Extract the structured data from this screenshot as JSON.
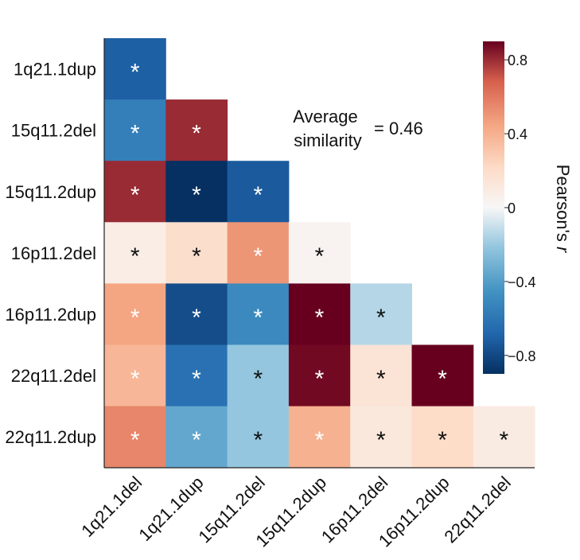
{
  "chart_data": {
    "type": "heatmap",
    "triangle": "lower",
    "row_labels": [
      "1q21.1dup",
      "15q11.2del",
      "15q11.2dup",
      "16p11.2del",
      "16p11.2dup",
      "22q11.2del",
      "22q11.2dup"
    ],
    "column_labels": [
      "1q21.1del",
      "1q21.1dup",
      "15q11.2del",
      "15q11.2dup",
      "16p11.2del",
      "16p11.2dup",
      "22q11.2del"
    ],
    "values": [
      [
        -0.7
      ],
      [
        -0.55,
        0.8
      ],
      [
        0.8,
        -0.95,
        -0.72
      ],
      [
        0.08,
        0.2,
        0.5,
        0.03
      ],
      [
        0.45,
        -0.78,
        -0.5,
        0.92,
        -0.15
      ],
      [
        0.38,
        -0.62,
        -0.22,
        0.88,
        0.16,
        0.95
      ],
      [
        0.55,
        -0.36,
        -0.22,
        0.4,
        0.12,
        0.22,
        0.1
      ]
    ],
    "significance_marker": "*",
    "annotation": {
      "line1": "Average",
      "line2": "similarity",
      "value": "= 0.46"
    },
    "colorbar": {
      "label_prefix": "Pearson's ",
      "label_italic": "r",
      "range": [
        -0.9,
        0.9
      ],
      "ticks": [
        {
          "value": 0.8,
          "label": "0.8"
        },
        {
          "value": 0.4,
          "label": "0.4"
        },
        {
          "value": 0.0,
          "label": "0"
        },
        {
          "value": -0.4,
          "label": "−0.4"
        },
        {
          "value": -0.8,
          "label": "−0.8"
        }
      ]
    },
    "colors": {
      "neg_max": "#053061",
      "neg_mid": "#4393c3",
      "neutral": "#f7f7f7",
      "pos_mid": "#f4a582",
      "pos_max": "#67001f"
    }
  }
}
